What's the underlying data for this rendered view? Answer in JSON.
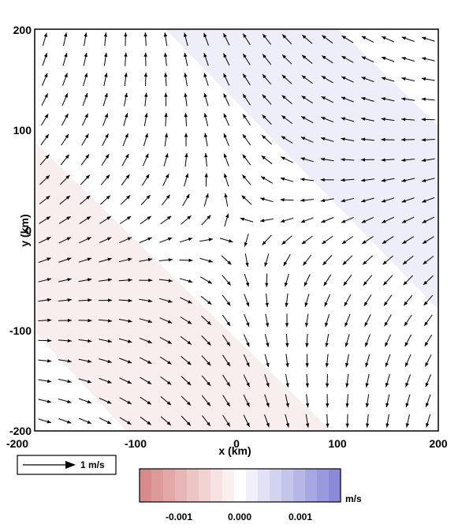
{
  "chart_data": {
    "type": "quiver",
    "xlabel": "x (km)",
    "ylabel": "y (km)",
    "xlim": [
      -200,
      200
    ],
    "ylim": [
      -200,
      200
    ],
    "x_ticks": [
      "-200",
      "-100",
      "0",
      "100",
      "200"
    ],
    "y_ticks": [
      "-200",
      "-100",
      "0",
      "100",
      "200"
    ],
    "grid": false,
    "vector_field": {
      "description_of_flow": "deformation field centred near (0, 0): convergent flow along the x-axis, divergent toward the upper-left and lower-right corners",
      "spacing_km": 20,
      "x_range": [
        -190,
        190
      ],
      "y_range": [
        -190,
        190
      ]
    },
    "scale_key": {
      "value": 1,
      "label": "1 m/s"
    },
    "shading": {
      "colors": {
        "negative": "#d98a8a",
        "zero": "#ffffff",
        "positive": "#8a8ad9"
      },
      "bands": [
        {
          "level": 0.0005,
          "side": "upper-right"
        },
        {
          "level": -0.0005,
          "side": "lower-left"
        }
      ]
    },
    "colorbar": {
      "unit": "m/s",
      "range": [
        -0.0017,
        0.0017
      ],
      "ticks": [
        "-0.001",
        "0.000",
        "0.001"
      ],
      "tick_values": [
        -0.001,
        0,
        0.001
      ],
      "n_levels": 17
    }
  }
}
